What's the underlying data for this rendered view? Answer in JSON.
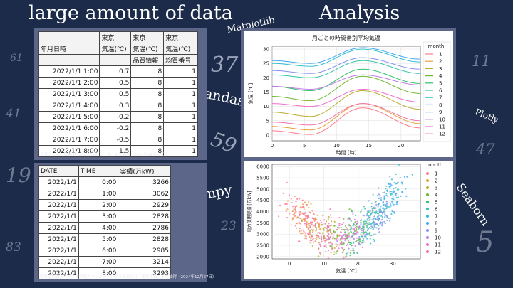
{
  "headings": {
    "left": "large amount of data",
    "right": "Analysis"
  },
  "floating_labels": {
    "matplotlib": "Matplotlib",
    "pandas": "Pandas",
    "numpy": "Numpy",
    "plotly": "Plotly",
    "seaborn": "Seaborn"
  },
  "background_numbers": [
    "61",
    "41",
    "19",
    "83",
    "37",
    "59",
    "23",
    "11",
    "47",
    "5"
  ],
  "temperature_table": {
    "header_rows": [
      [
        "",
        "東京",
        "東京",
        "東京"
      ],
      [
        "年月日時",
        "気温(℃)",
        "気温(℃)",
        "気温(℃)"
      ],
      [
        "",
        "",
        "品質情報",
        "均質番号"
      ]
    ],
    "rows": [
      [
        "2022/1/1 1:00",
        "0.7",
        "8",
        "1"
      ],
      [
        "2022/1/1 2:00",
        "0.5",
        "8",
        "1"
      ],
      [
        "2022/1/1 3:00",
        "0.5",
        "8",
        "1"
      ],
      [
        "2022/1/1 4:00",
        "0.3",
        "8",
        "1"
      ],
      [
        "2022/1/1 5:00",
        "-0.2",
        "8",
        "1"
      ],
      [
        "2022/1/1 6:00",
        "-0.2",
        "8",
        "1"
      ],
      [
        "2022/1/1 7:00",
        "-0.5",
        "8",
        "1"
      ],
      [
        "2022/1/1 8:00",
        "1.5",
        "8",
        "1"
      ]
    ],
    "source": "気温データ：気象庁「過去の気象データ」より抽得（2024年12月27日）"
  },
  "power_table": {
    "headers": [
      "DATE",
      "TIME",
      "実績(万kW)"
    ],
    "rows": [
      [
        "2022/1/1",
        "0:00",
        "3266"
      ],
      [
        "2022/1/1",
        "1:00",
        "3062"
      ],
      [
        "2022/1/1",
        "2:00",
        "2929"
      ],
      [
        "2022/1/1",
        "3:00",
        "2828"
      ],
      [
        "2022/1/1",
        "4:00",
        "2786"
      ],
      [
        "2022/1/1",
        "5:00",
        "2828"
      ],
      [
        "2022/1/1",
        "6:00",
        "2985"
      ],
      [
        "2022/1/1",
        "7:00",
        "3214"
      ],
      [
        "2022/1/1",
        "8:00",
        "3293"
      ]
    ],
    "source": "電気使用量データ：東京電力ホールディングス株式会社「電気予報」より抽得（2024年12月27日）"
  },
  "chart_data": [
    {
      "type": "line",
      "title": "月ごとの時間帯別平均気温",
      "xlabel": "時間 [時]",
      "ylabel": "気温 [℃]",
      "xlim": [
        0,
        23
      ],
      "ylim": [
        -2,
        31
      ],
      "xticks": [
        0,
        5,
        10,
        15,
        20
      ],
      "yticks": [
        0,
        5,
        10,
        15,
        20,
        25,
        30
      ],
      "grid": true,
      "legend": {
        "title": "month",
        "position": "right"
      },
      "x": [
        0,
        6,
        14,
        23
      ],
      "series": [
        {
          "name": "1",
          "color": "#ff7a8a",
          "values": [
            1.5,
            0.2,
            9.5,
            2.5
          ]
        },
        {
          "name": "2",
          "color": "#e9a13b",
          "values": [
            3.0,
            1.8,
            11.0,
            4.0
          ]
        },
        {
          "name": "3",
          "color": "#b9ad2f",
          "values": [
            8.0,
            6.5,
            15.5,
            9.0
          ]
        },
        {
          "name": "4",
          "color": "#6eb82f",
          "values": [
            13.5,
            12.0,
            20.5,
            14.5
          ]
        },
        {
          "name": "5",
          "color": "#2fbf6a",
          "values": [
            17.0,
            15.5,
            23.0,
            18.0
          ]
        },
        {
          "name": "6",
          "color": "#2fc4a6",
          "values": [
            21.0,
            20.0,
            26.0,
            21.5
          ]
        },
        {
          "name": "7",
          "color": "#2fbfd0",
          "values": [
            25.0,
            24.0,
            30.0,
            25.5
          ]
        },
        {
          "name": "8",
          "color": "#3fa9f5",
          "values": [
            26.0,
            25.0,
            30.5,
            26.5
          ]
        },
        {
          "name": "9",
          "color": "#8a8ff5",
          "values": [
            22.5,
            21.5,
            27.0,
            23.0
          ]
        },
        {
          "name": "10",
          "color": "#c27be6",
          "values": [
            17.0,
            16.0,
            21.0,
            17.5
          ]
        },
        {
          "name": "11",
          "color": "#ef6fce",
          "values": [
            11.0,
            10.0,
            16.0,
            11.5
          ]
        },
        {
          "name": "12",
          "color": "#f472a8",
          "values": [
            4.5,
            3.5,
            11.0,
            5.0
          ]
        }
      ]
    },
    {
      "type": "scatter",
      "xlabel": "気温 [℃]",
      "ylabel": "電力使用実績 [万kW]",
      "xlim": [
        -5,
        38
      ],
      "ylim": [
        1900,
        6100
      ],
      "xticks": [
        0,
        10,
        20,
        30
      ],
      "yticks": [
        2000,
        2500,
        3000,
        3500,
        4000,
        4500,
        5000,
        5500,
        6000
      ],
      "grid": true,
      "legend": {
        "title": "month",
        "position": "right"
      },
      "months": [
        "1",
        "2",
        "3",
        "4",
        "5",
        "6",
        "7",
        "8",
        "9",
        "10",
        "11",
        "12"
      ],
      "month_colors": [
        "#ff7a8a",
        "#e9a13b",
        "#b9ad2f",
        "#6eb82f",
        "#2fbf6a",
        "#2fc4a6",
        "#2fbfd0",
        "#3fa9f5",
        "#8a8ff5",
        "#c27be6",
        "#ef6fce",
        "#f472a8"
      ]
    }
  ]
}
